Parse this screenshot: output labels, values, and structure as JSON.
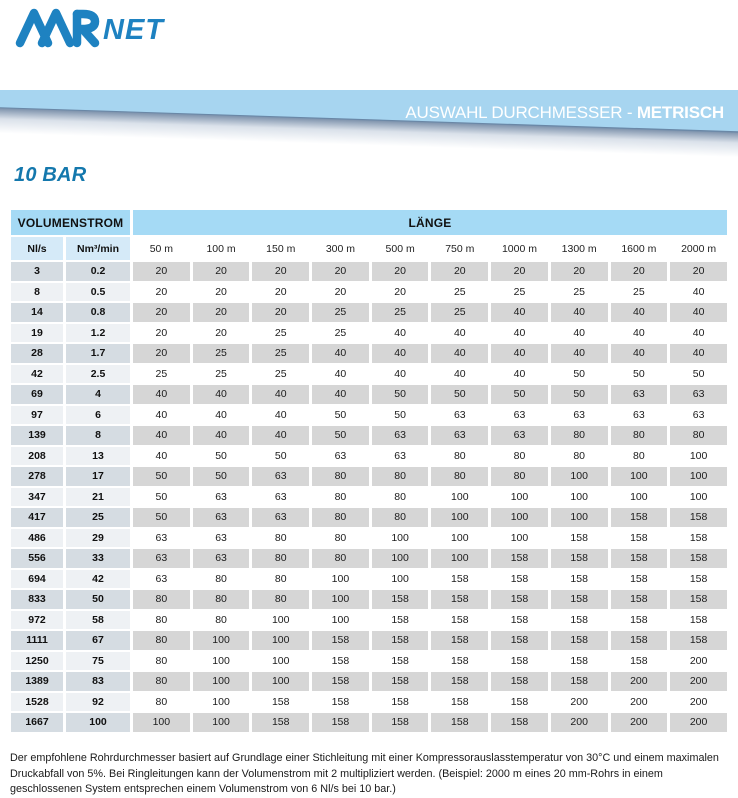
{
  "logo": {
    "air": "AIR",
    "net": "NET"
  },
  "banner": {
    "title_regular": "AUSWAHL DURCHMESSER - ",
    "title_bold": "METRISCH"
  },
  "section_title": "10 BAR",
  "colors": {
    "brand_blue": "#1e82c1",
    "band_light_blue": "#a7d5f0",
    "table_header_blue": "#a5daf5",
    "subheader_label_blue": "#d5eaf8",
    "row_odd_gray": "#d6d6d6",
    "row_odd_label": "#d5dce2",
    "row_even_label": "#eef1f4"
  },
  "table": {
    "group_headers": {
      "volumenstrom": "VOLUMENSTROM",
      "laenge": "LÄNGE"
    },
    "flow_unit_headers": [
      "Nl/s",
      "Nm³/min"
    ],
    "length_headers": [
      "50 m",
      "100 m",
      "150 m",
      "300 m",
      "500 m",
      "750 m",
      "1000 m",
      "1300 m",
      "1600 m",
      "2000 m"
    ],
    "rows": [
      {
        "nl_s": "3",
        "nm3_min": "0.2",
        "diameters": [
          20,
          20,
          20,
          20,
          20,
          20,
          20,
          20,
          20,
          20
        ]
      },
      {
        "nl_s": "8",
        "nm3_min": "0.5",
        "diameters": [
          20,
          20,
          20,
          20,
          20,
          25,
          25,
          25,
          25,
          40
        ]
      },
      {
        "nl_s": "14",
        "nm3_min": "0.8",
        "diameters": [
          20,
          20,
          20,
          25,
          25,
          25,
          40,
          40,
          40,
          40
        ]
      },
      {
        "nl_s": "19",
        "nm3_min": "1.2",
        "diameters": [
          20,
          20,
          25,
          25,
          40,
          40,
          40,
          40,
          40,
          40
        ]
      },
      {
        "nl_s": "28",
        "nm3_min": "1.7",
        "diameters": [
          20,
          25,
          25,
          40,
          40,
          40,
          40,
          40,
          40,
          40
        ]
      },
      {
        "nl_s": "42",
        "nm3_min": "2.5",
        "diameters": [
          25,
          25,
          25,
          40,
          40,
          40,
          40,
          50,
          50,
          50
        ]
      },
      {
        "nl_s": "69",
        "nm3_min": "4",
        "diameters": [
          40,
          40,
          40,
          40,
          50,
          50,
          50,
          50,
          63,
          63
        ]
      },
      {
        "nl_s": "97",
        "nm3_min": "6",
        "diameters": [
          40,
          40,
          40,
          50,
          50,
          63,
          63,
          63,
          63,
          63
        ]
      },
      {
        "nl_s": "139",
        "nm3_min": "8",
        "diameters": [
          40,
          40,
          40,
          50,
          63,
          63,
          63,
          80,
          80,
          80
        ]
      },
      {
        "nl_s": "208",
        "nm3_min": "13",
        "diameters": [
          40,
          50,
          50,
          63,
          63,
          80,
          80,
          80,
          80,
          100
        ]
      },
      {
        "nl_s": "278",
        "nm3_min": "17",
        "diameters": [
          50,
          50,
          63,
          80,
          80,
          80,
          80,
          100,
          100,
          100
        ]
      },
      {
        "nl_s": "347",
        "nm3_min": "21",
        "diameters": [
          50,
          63,
          63,
          80,
          80,
          100,
          100,
          100,
          100,
          100
        ]
      },
      {
        "nl_s": "417",
        "nm3_min": "25",
        "diameters": [
          50,
          63,
          63,
          80,
          80,
          100,
          100,
          100,
          158,
          158
        ]
      },
      {
        "nl_s": "486",
        "nm3_min": "29",
        "diameters": [
          63,
          63,
          80,
          80,
          100,
          100,
          100,
          158,
          158,
          158
        ]
      },
      {
        "nl_s": "556",
        "nm3_min": "33",
        "diameters": [
          63,
          63,
          80,
          80,
          100,
          100,
          158,
          158,
          158,
          158
        ]
      },
      {
        "nl_s": "694",
        "nm3_min": "42",
        "diameters": [
          63,
          80,
          80,
          100,
          100,
          158,
          158,
          158,
          158,
          158
        ]
      },
      {
        "nl_s": "833",
        "nm3_min": "50",
        "diameters": [
          80,
          80,
          80,
          100,
          158,
          158,
          158,
          158,
          158,
          158
        ]
      },
      {
        "nl_s": "972",
        "nm3_min": "58",
        "diameters": [
          80,
          80,
          100,
          100,
          158,
          158,
          158,
          158,
          158,
          158
        ]
      },
      {
        "nl_s": "1111",
        "nm3_min": "67",
        "diameters": [
          80,
          100,
          100,
          158,
          158,
          158,
          158,
          158,
          158,
          158
        ]
      },
      {
        "nl_s": "1250",
        "nm3_min": "75",
        "diameters": [
          80,
          100,
          100,
          158,
          158,
          158,
          158,
          158,
          158,
          200
        ]
      },
      {
        "nl_s": "1389",
        "nm3_min": "83",
        "diameters": [
          80,
          100,
          100,
          158,
          158,
          158,
          158,
          158,
          200,
          200
        ]
      },
      {
        "nl_s": "1528",
        "nm3_min": "92",
        "diameters": [
          80,
          100,
          158,
          158,
          158,
          158,
          158,
          200,
          200,
          200
        ]
      },
      {
        "nl_s": "1667",
        "nm3_min": "100",
        "diameters": [
          100,
          100,
          158,
          158,
          158,
          158,
          158,
          200,
          200,
          200
        ]
      }
    ]
  },
  "footnote": "Der empfohlene Rohrdurchmesser basiert auf Grundlage einer Stichleitung mit einer Kompressorauslasstemperatur von 30°C und einem maximalen Druckabfall von 5%. Bei Ringleitungen kann der Volumenstrom mit 2 multipliziert werden. (Beispiel: 2000 m eines 20 mm-Rohrs in einem geschlossenen System entsprechen einem Volumenstrom von 6 Nl/s bei 10 bar.)"
}
